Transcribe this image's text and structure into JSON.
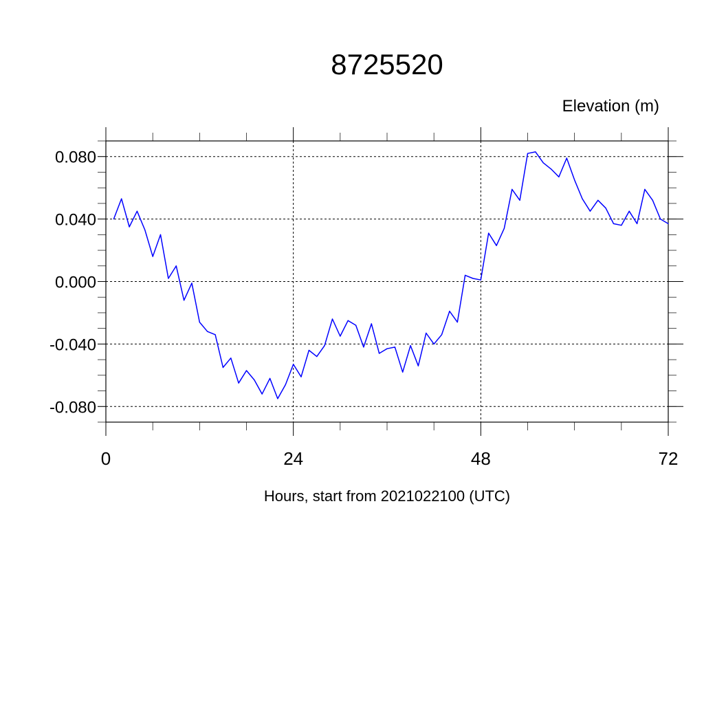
{
  "chart_data": {
    "type": "line",
    "title": "8725520",
    "ylabel": "Elevation (m)",
    "xlabel": "Hours, start from 2021022100 (UTC)",
    "xlim": [
      0,
      72
    ],
    "ylim": [
      -0.09,
      0.09
    ],
    "x_ticks": [
      0,
      24,
      48,
      72
    ],
    "x_tick_labels": [
      "0",
      "24",
      "48",
      "72"
    ],
    "y_ticks": [
      -0.08,
      -0.04,
      0.0,
      0.04,
      0.08
    ],
    "y_tick_labels": [
      "-0.080",
      "-0.040",
      "0.000",
      "0.040",
      "0.080"
    ],
    "grid": true,
    "line_color": "#0000ff",
    "series": [
      {
        "x": [
          1,
          2,
          3,
          4,
          5,
          6,
          7,
          8,
          9,
          10,
          11,
          12,
          13,
          14,
          15,
          16,
          17,
          18,
          19,
          20,
          21,
          22,
          23,
          24,
          25,
          26,
          27,
          28,
          29,
          30,
          31,
          32,
          33,
          34,
          35,
          36,
          37,
          38,
          39,
          40,
          41,
          42,
          43,
          44,
          45,
          46,
          47,
          48,
          49,
          50,
          51,
          52,
          53,
          54,
          55,
          56,
          57,
          58,
          59,
          60,
          61,
          62,
          63,
          64,
          65,
          66,
          67,
          68,
          69,
          70,
          71,
          72
        ],
        "values": [
          0.04,
          0.053,
          0.035,
          0.045,
          0.033,
          0.016,
          0.03,
          0.002,
          0.01,
          -0.012,
          -0.001,
          -0.026,
          -0.032,
          -0.034,
          -0.055,
          -0.049,
          -0.065,
          -0.057,
          -0.063,
          -0.072,
          -0.062,
          -0.075,
          -0.066,
          -0.053,
          -0.061,
          -0.044,
          -0.048,
          -0.041,
          -0.024,
          -0.035,
          -0.025,
          -0.028,
          -0.042,
          -0.027,
          -0.046,
          -0.043,
          -0.042,
          -0.058,
          -0.041,
          -0.054,
          -0.033,
          -0.04,
          -0.034,
          -0.019,
          -0.026,
          0.004,
          0.002,
          0.001,
          0.031,
          0.023,
          0.034,
          0.059,
          0.052,
          0.082,
          0.083,
          0.076,
          0.072,
          0.067,
          0.079,
          0.065,
          0.053,
          0.045,
          0.052,
          0.047,
          0.037,
          0.036,
          0.045,
          0.037,
          0.059,
          0.052,
          0.04,
          0.037
        ]
      }
    ]
  }
}
